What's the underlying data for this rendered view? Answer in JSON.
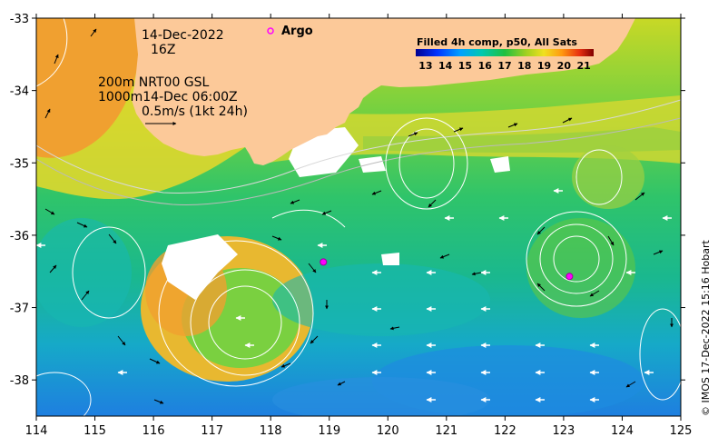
{
  "map": {
    "date_label": "14-Dec-2022",
    "hour_label": "16Z",
    "argo_label": "Argo",
    "contour_line1": "200m  NRT00 GSL",
    "contour_line2": "1000m14-Dec 06:00Z",
    "current_scale": "0.5m/s (1kt 24h)",
    "credit": "© IMOS 17-Dec-2022 15:16 Hobart",
    "x_ticks": [
      "114",
      "115",
      "116",
      "117",
      "118",
      "119",
      "120",
      "121",
      "122",
      "123",
      "124",
      "125"
    ],
    "y_ticks": [
      "-33",
      "-34",
      "-35",
      "-36",
      "-37",
      "-38"
    ],
    "lon_range": [
      114,
      125
    ],
    "lat_range": [
      -38.5,
      -33
    ],
    "colorbar": {
      "title": "Filled 4h comp, p50, All Sats",
      "labels": [
        "13",
        "14",
        "15",
        "16",
        "17",
        "18",
        "19",
        "20",
        "21"
      ],
      "range": [
        12.5,
        21.5
      ]
    },
    "argo_floats": [
      {
        "lon": 118.9,
        "lat": -36.37
      },
      {
        "lon": 123.1,
        "lat": -36.57
      }
    ],
    "colors": {
      "land": "#fcc999",
      "cloud": "#ffffff",
      "argo_marker": "#ff00ff",
      "contour": "#cccccc"
    }
  }
}
